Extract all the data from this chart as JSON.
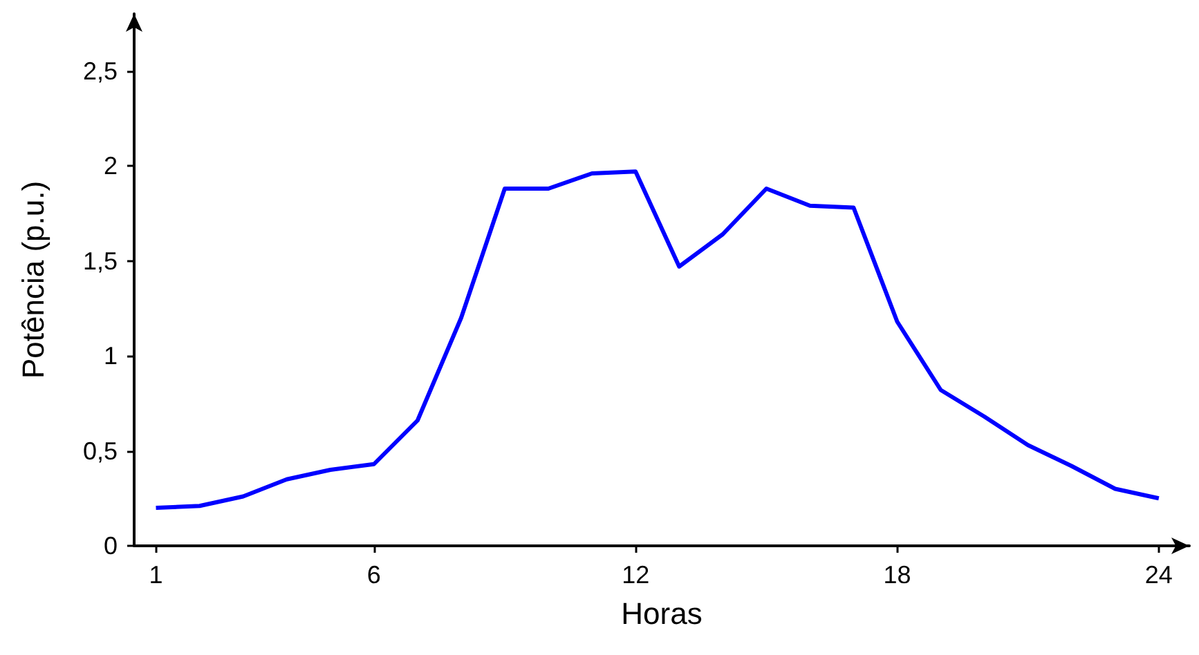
{
  "chart_data": {
    "type": "line",
    "xlabel": "Horas",
    "ylabel": "Potência (p.u.)",
    "x": [
      1,
      2,
      3,
      4,
      5,
      6,
      7,
      8,
      9,
      10,
      11,
      12,
      13,
      14,
      15,
      16,
      17,
      18,
      19,
      20,
      21,
      22,
      23,
      24
    ],
    "series": [
      {
        "color": "#0000ff",
        "values": [
          0.2,
          0.21,
          0.26,
          0.35,
          0.4,
          0.43,
          0.66,
          1.2,
          1.88,
          1.88,
          1.96,
          1.97,
          1.47,
          1.64,
          1.88,
          1.79,
          1.78,
          1.18,
          0.82,
          0.68,
          0.53,
          0.42,
          0.3,
          0.25
        ]
      }
    ],
    "xlim": [
      0.5,
      24.7
    ],
    "xticks": [
      1,
      6,
      12,
      18,
      24
    ],
    "ylim": [
      0,
      2.8
    ],
    "yticks": [
      0,
      {
        "value": 0.5,
        "label": "0,5"
      },
      1,
      {
        "value": 1.5,
        "label": "1,5"
      },
      2,
      {
        "value": 2.5,
        "label": "2,5"
      }
    ],
    "grid": false,
    "marker": "none",
    "line_style": "solid"
  }
}
